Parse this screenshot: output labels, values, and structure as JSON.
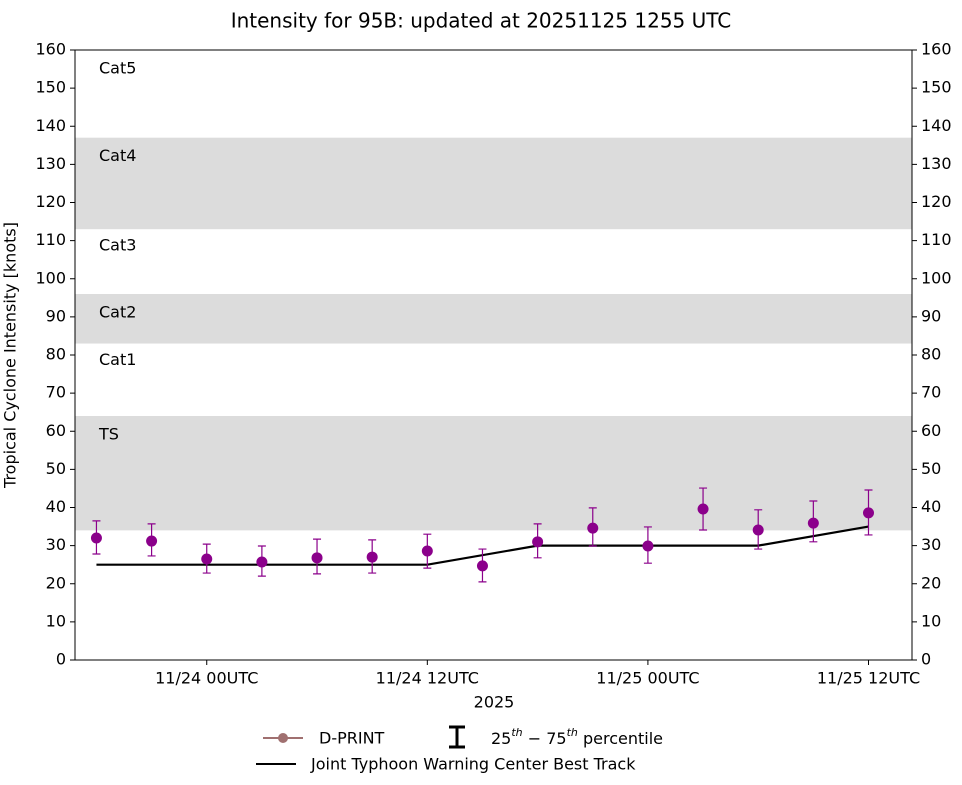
{
  "chart_data": {
    "type": "errorbar",
    "title": "Intensity for 95B: updated at 20251125 1255 UTC",
    "y_label": "Tropical Cyclone Intensity [knots]",
    "x_label": "2025",
    "xlim": [
      "2025-11-23T16:50Z",
      "2025-11-25T14:22Z"
    ],
    "xticks": [
      {
        "value": "2025-11-24T00:00Z",
        "label": "11/24 00UTC"
      },
      {
        "value": "2025-11-24T12:00Z",
        "label": "11/24 12UTC"
      },
      {
        "value": "2025-11-25T00:00Z",
        "label": "11/25 00UTC"
      },
      {
        "value": "2025-11-25T12:00Z",
        "label": "11/25 12UTC"
      }
    ],
    "ylim": [
      0,
      160
    ],
    "yticks": [
      0,
      10,
      20,
      30,
      40,
      50,
      60,
      70,
      80,
      90,
      100,
      110,
      120,
      130,
      140,
      150,
      160
    ],
    "bands": [
      {
        "label": "TS",
        "range": [
          34,
          64
        ],
        "shaded": true
      },
      {
        "label": "Cat1",
        "range": [
          64,
          83
        ],
        "shaded": false
      },
      {
        "label": "Cat2",
        "range": [
          83,
          96
        ],
        "shaded": true
      },
      {
        "label": "Cat3",
        "range": [
          96,
          113
        ],
        "shaded": false
      },
      {
        "label": "Cat4",
        "range": [
          113,
          137
        ],
        "shaded": true
      },
      {
        "label": "Cat5",
        "range": [
          137,
          160
        ],
        "shaded": false
      }
    ],
    "band_color": "#dcdcdc",
    "series": [
      {
        "name": "D-PRINT",
        "color": "#8b008b",
        "legend_color": "#a07070",
        "x": [
          "2025-11-23T18:00Z",
          "2025-11-23T21:00Z",
          "2025-11-24T00:00Z",
          "2025-11-24T03:00Z",
          "2025-11-24T06:00Z",
          "2025-11-24T09:00Z",
          "2025-11-24T12:00Z",
          "2025-11-24T15:00Z",
          "2025-11-24T18:00Z",
          "2025-11-24T21:00Z",
          "2025-11-25T00:00Z",
          "2025-11-25T03:00Z",
          "2025-11-25T06:00Z",
          "2025-11-25T09:00Z",
          "2025-11-25T12:00Z"
        ],
        "values": [
          32,
          31.2,
          26.5,
          25.7,
          26.8,
          27,
          28.6,
          24.7,
          31,
          34.6,
          29.9,
          39.6,
          34.1,
          35.9,
          38.6
        ],
        "p25": [
          27.8,
          27.3,
          22.8,
          22,
          22.6,
          22.8,
          24.1,
          20.5,
          26.8,
          29.9,
          25.4,
          34.1,
          29.1,
          31,
          32.8
        ],
        "p75": [
          36.5,
          35.7,
          30.4,
          29.9,
          31.7,
          31.5,
          33,
          29.1,
          35.7,
          39.9,
          34.9,
          45.1,
          39.4,
          41.7,
          44.6
        ]
      },
      {
        "name": "Joint Typhoon Warning Center Best Track",
        "color": "#000000",
        "x": [
          "2025-11-23T18:00Z",
          "2025-11-24T00:00Z",
          "2025-11-24T06:00Z",
          "2025-11-24T12:00Z",
          "2025-11-24T18:00Z",
          "2025-11-25T00:00Z",
          "2025-11-25T06:00Z",
          "2025-11-25T12:00Z"
        ],
        "values": [
          25,
          25,
          25,
          25,
          30,
          30,
          30,
          35
        ]
      }
    ],
    "errorbar_legend": "25th − 75th percentile"
  }
}
